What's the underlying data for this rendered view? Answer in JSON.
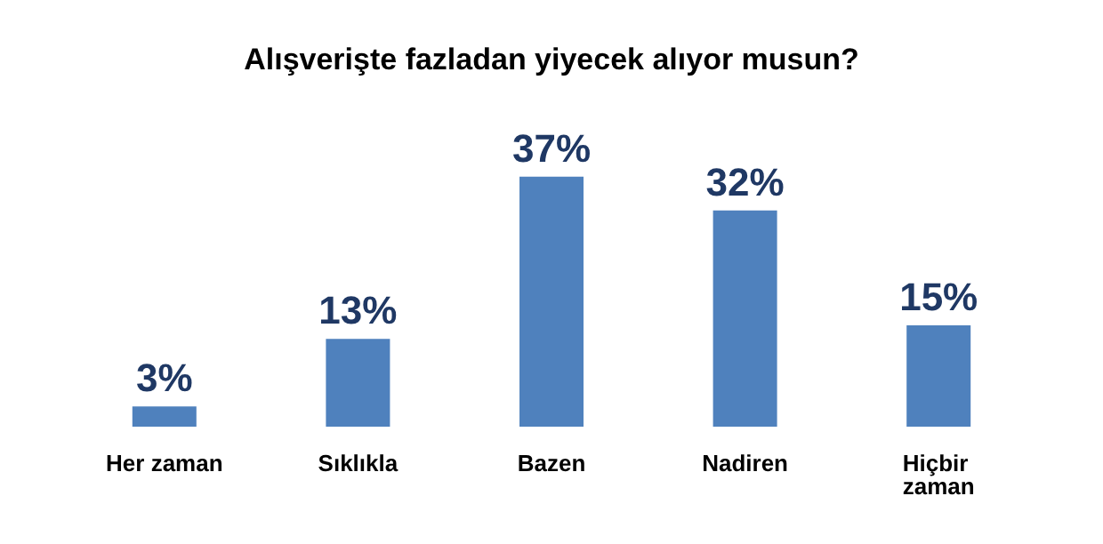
{
  "chart_data": {
    "type": "bar",
    "title": "Alışverişte fazladan yiyecek alıyor musun?",
    "categories": [
      "Her zaman",
      "Sıklıkla",
      "Bazen",
      "Nadiren",
      "Hiçbir zaman"
    ],
    "values": [
      3,
      13,
      37,
      32,
      15
    ],
    "value_labels": [
      "3%",
      "13%",
      "37%",
      "32%",
      "15%"
    ],
    "color": "#4f81bd"
  }
}
